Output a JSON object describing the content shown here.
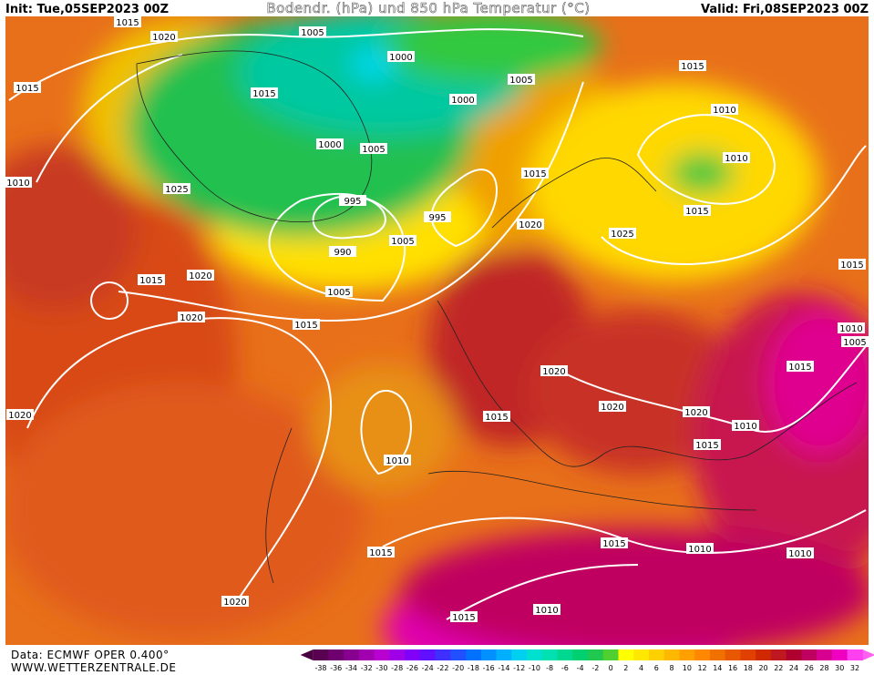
{
  "header": {
    "init": "Init: Tue,05SEP2023 00Z",
    "title": "Bodendr. (hPa) und 850 hPa Temperatur (°C)",
    "valid": "Valid: Fri,08SEP2023 00Z"
  },
  "footer": {
    "source": "Data: ECMWF OPER 0.400°",
    "website": "WWW.WETTERZENTRALE.DE"
  },
  "colorbar": {
    "labels": [
      -38,
      -36,
      -34,
      -32,
      -30,
      -28,
      -26,
      -24,
      -22,
      -20,
      -18,
      -16,
      -14,
      -12,
      -10,
      -8,
      -6,
      -4,
      -2,
      0,
      2,
      4,
      6,
      8,
      10,
      12,
      14,
      16,
      18,
      20,
      22,
      24,
      26,
      28,
      30,
      32
    ]
  },
  "isobar_labels": [
    1015,
    1020,
    1005,
    1000,
    1005,
    1015,
    1015,
    1015,
    1000,
    1010,
    1000,
    1005,
    1010,
    1015,
    1010,
    1025,
    995,
    995,
    1015,
    1020,
    990,
    1005,
    1025,
    1015,
    1020,
    1015,
    1005,
    1015,
    1020,
    1010,
    1005,
    1015,
    1020,
    1020,
    1015,
    1020,
    1020,
    1010,
    1015,
    1010,
    1015,
    1015,
    1010,
    1010,
    1020,
    1010,
    1015
  ]
}
